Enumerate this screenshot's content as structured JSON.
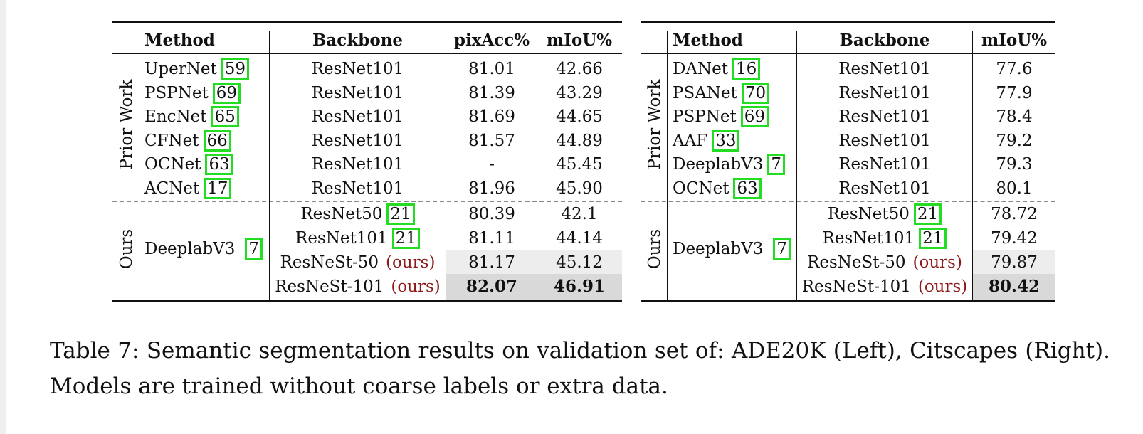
{
  "left_table": {
    "headers": {
      "method": "Method",
      "backbone": "Backbone",
      "pixacc": "pixAcc%",
      "miou": "mIoU%"
    },
    "group_prior": "Prior Work",
    "group_ours": "Ours",
    "prior_rows": [
      {
        "method": "UperNet",
        "cite": "59",
        "backbone": "ResNet101",
        "pixacc": "81.01",
        "miou": "42.66"
      },
      {
        "method": "PSPNet",
        "cite": "69",
        "backbone": "ResNet101",
        "pixacc": "81.39",
        "miou": "43.29"
      },
      {
        "method": "EncNet",
        "cite": "65",
        "backbone": "ResNet101",
        "pixacc": "81.69",
        "miou": "44.65"
      },
      {
        "method": "CFNet",
        "cite": "66",
        "backbone": "ResNet101",
        "pixacc": "81.57",
        "miou": "44.89"
      },
      {
        "method": "OCNet",
        "cite": "63",
        "backbone": "ResNet101",
        "pixacc": "-",
        "miou": "45.45"
      },
      {
        "method": "ACNet",
        "cite": "17",
        "backbone": "ResNet101",
        "pixacc": "81.96",
        "miou": "45.90"
      }
    ],
    "ours_method": "DeeplabV3",
    "ours_cite": "7",
    "ours_rows": [
      {
        "backbone": "ResNet50",
        "cite": "21",
        "suffix": "",
        "pixacc": "80.39",
        "miou": "42.1"
      },
      {
        "backbone": "ResNet101",
        "cite": "21",
        "suffix": "",
        "pixacc": "81.11",
        "miou": "44.14"
      },
      {
        "backbone": "ResNeSt-50",
        "cite": "",
        "suffix": "(ours)",
        "pixacc": "81.17",
        "miou": "45.12"
      },
      {
        "backbone": "ResNeSt-101",
        "cite": "",
        "suffix": "(ours)",
        "pixacc": "82.07",
        "miou": "46.91"
      }
    ]
  },
  "right_table": {
    "headers": {
      "method": "Method",
      "backbone": "Backbone",
      "miou": "mIoU%"
    },
    "group_prior": "Prior Work",
    "group_ours": "Ours",
    "prior_rows": [
      {
        "method": "DANet",
        "cite": "16",
        "backbone": "ResNet101",
        "miou": "77.6"
      },
      {
        "method": "PSANet",
        "cite": "70",
        "backbone": "ResNet101",
        "miou": "77.9"
      },
      {
        "method": "PSPNet",
        "cite": "69",
        "backbone": "ResNet101",
        "miou": "78.4"
      },
      {
        "method": "AAF",
        "cite": "33",
        "backbone": "ResNet101",
        "miou": "79.2"
      },
      {
        "method": "DeeplabV3",
        "cite": "7",
        "backbone": "ResNet101",
        "miou": "79.3"
      },
      {
        "method": "OCNet",
        "cite": "63",
        "backbone": "ResNet101",
        "miou": "80.1"
      }
    ],
    "ours_method": "DeeplabV3",
    "ours_cite": "7",
    "ours_rows": [
      {
        "backbone": "ResNet50",
        "cite": "21",
        "suffix": "",
        "miou": "78.72"
      },
      {
        "backbone": "ResNet101",
        "cite": "21",
        "suffix": "",
        "miou": "79.42"
      },
      {
        "backbone": "ResNeSt-50",
        "cite": "",
        "suffix": "(ours)",
        "miou": "79.87"
      },
      {
        "backbone": "ResNeSt-101",
        "cite": "",
        "suffix": "(ours)",
        "miou": "80.42"
      }
    ]
  },
  "caption": "Table 7: Semantic segmentation results on validation set of: ADE20K (Left), Citscapes (Right). Models are trained without coarse labels or extra data.",
  "colors": {
    "cite_box": "#22dd22",
    "ours_text": "#8b1a1a",
    "shade_light": "#ededed",
    "shade_dark": "#d9d9d9"
  }
}
